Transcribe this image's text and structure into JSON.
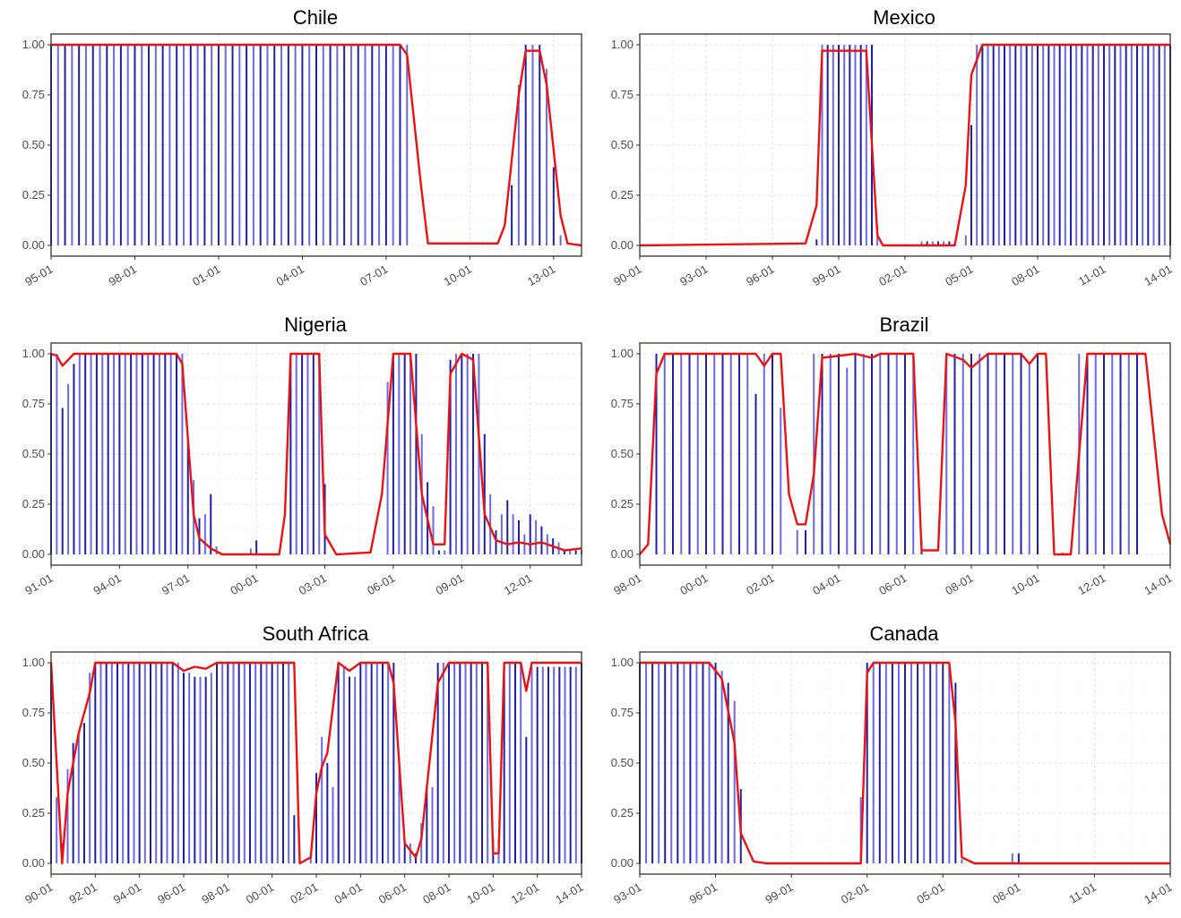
{
  "colors": {
    "bar_dark": "#1f1fa8",
    "bar_light": "#6a6ae8",
    "line": "#ee1111",
    "frame": "#333333",
    "grid": "#dcdcdc"
  },
  "chart_data": [
    {
      "type": "bar",
      "title": "Chile",
      "ylim": [
        0,
        1
      ],
      "yticks": [
        "0.00",
        "0.25",
        "0.50",
        "0.75",
        "1.00"
      ],
      "xlim": [
        "1995-01",
        "2014-01"
      ],
      "xticks": [
        "95-01",
        "98-01",
        "01-01",
        "04-01",
        "07-01",
        "10-01",
        "13-01"
      ],
      "bar_period_months": 3,
      "bars": [
        [
          "1995-01",
          1
        ],
        [
          "2007-10",
          1
        ],
        [
          "2008-01",
          0
        ],
        [
          "2011-01",
          0
        ],
        [
          "2011-07",
          0.3
        ],
        [
          "2011-10",
          0.8
        ],
        [
          "2012-01",
          1
        ],
        [
          "2012-07",
          1
        ],
        [
          "2012-10",
          0.88
        ],
        [
          "2013-01",
          0.39
        ],
        [
          "2013-04",
          0.05
        ],
        [
          "2013-07",
          0
        ]
      ],
      "line": [
        [
          "1995-01",
          1
        ],
        [
          "2007-07",
          1
        ],
        [
          "2007-10",
          0.95
        ],
        [
          "2008-04",
          0.3
        ],
        [
          "2008-07",
          0.01
        ],
        [
          "2011-01",
          0.01
        ],
        [
          "2011-04",
          0.1
        ],
        [
          "2011-10",
          0.75
        ],
        [
          "2012-01",
          0.97
        ],
        [
          "2012-07",
          0.97
        ],
        [
          "2012-10",
          0.8
        ],
        [
          "2013-04",
          0.15
        ],
        [
          "2013-07",
          0.01
        ],
        [
          "2014-01",
          0
        ]
      ]
    },
    {
      "type": "bar",
      "title": "Mexico",
      "ylim": [
        0,
        1
      ],
      "yticks": [
        "0.00",
        "0.25",
        "0.50",
        "0.75",
        "1.00"
      ],
      "xlim": [
        "1990-01",
        "2014-01"
      ],
      "xticks": [
        "90-01",
        "93-01",
        "96-01",
        "99-01",
        "02-01",
        "05-01",
        "08-01",
        "11-01",
        "14-01"
      ],
      "bar_period_months": 3,
      "bars": [
        [
          "1990-01",
          0
        ],
        [
          "1998-01",
          0.03
        ],
        [
          "1998-04",
          1
        ],
        [
          "2000-07",
          1
        ],
        [
          "2000-10",
          0.1
        ],
        [
          "2001-01",
          0
        ],
        [
          "2002-10",
          0.02
        ],
        [
          "2004-01",
          0.02
        ],
        [
          "2004-04",
          0
        ],
        [
          "2004-10",
          0.05
        ],
        [
          "2005-01",
          0.6
        ],
        [
          "2005-04",
          1
        ],
        [
          "2014-01",
          1
        ]
      ],
      "line": [
        [
          "1990-01",
          0
        ],
        [
          "1997-07",
          0.01
        ],
        [
          "1998-01",
          0.2
        ],
        [
          "1998-04",
          0.97
        ],
        [
          "2000-04",
          0.97
        ],
        [
          "2000-10",
          0.05
        ],
        [
          "2001-01",
          0
        ],
        [
          "2004-04",
          0
        ],
        [
          "2004-10",
          0.3
        ],
        [
          "2005-01",
          0.85
        ],
        [
          "2005-07",
          1
        ],
        [
          "2014-01",
          1
        ]
      ]
    },
    {
      "type": "bar",
      "title": "Nigeria",
      "ylim": [
        0,
        1
      ],
      "yticks": [
        "0.00",
        "0.25",
        "0.50",
        "0.75",
        "1.00"
      ],
      "xlim": [
        "1991-01",
        "2014-04"
      ],
      "xticks": [
        "91-01",
        "94-01",
        "97-01",
        "00-01",
        "03-01",
        "06-01",
        "09-01",
        "12-01"
      ],
      "bar_period_months": 3,
      "bars": [
        [
          "1991-01",
          1
        ],
        [
          "1991-07",
          0.73
        ],
        [
          "1991-10",
          0.85
        ],
        [
          "1992-01",
          0.95
        ],
        [
          "1992-04",
          1
        ],
        [
          "1996-10",
          1
        ],
        [
          "1997-01",
          0.58
        ],
        [
          "1997-04",
          0.37
        ],
        [
          "1997-07",
          0.18
        ],
        [
          "1997-10",
          0.2
        ],
        [
          "1998-01",
          0.3
        ],
        [
          "1998-04",
          0.04
        ],
        [
          "1998-07",
          0
        ],
        [
          "1999-10",
          0.03
        ],
        [
          "2000-01",
          0.07
        ],
        [
          "2000-04",
          0
        ],
        [
          "2001-07",
          1
        ],
        [
          "2002-10",
          1
        ],
        [
          "2003-01",
          0.35
        ],
        [
          "2003-04",
          0
        ],
        [
          "2005-10",
          0.86
        ],
        [
          "2006-01",
          1
        ],
        [
          "2007-01",
          1
        ],
        [
          "2007-04",
          0.6
        ],
        [
          "2007-07",
          0.36
        ],
        [
          "2007-10",
          0.24
        ],
        [
          "2008-01",
          0.02
        ],
        [
          "2008-07",
          0.97
        ],
        [
          "2008-10",
          1
        ],
        [
          "2009-10",
          1
        ],
        [
          "2010-01",
          0.6
        ],
        [
          "2010-04",
          0.3
        ],
        [
          "2010-07",
          0.12
        ],
        [
          "2010-10",
          0.2
        ],
        [
          "2011-01",
          0.27
        ],
        [
          "2011-04",
          0.2
        ],
        [
          "2011-07",
          0.17
        ],
        [
          "2011-10",
          0.1
        ],
        [
          "2012-01",
          0.2
        ],
        [
          "2012-04",
          0.17
        ],
        [
          "2012-07",
          0.14
        ],
        [
          "2012-10",
          0.1
        ],
        [
          "2013-01",
          0.08
        ],
        [
          "2013-04",
          0.06
        ],
        [
          "2013-07",
          0.02
        ],
        [
          "2014-01",
          0.02
        ]
      ],
      "line": [
        [
          "1991-01",
          1
        ],
        [
          "1991-04",
          0.99
        ],
        [
          "1991-07",
          0.94
        ],
        [
          "1992-01",
          1
        ],
        [
          "1996-07",
          1
        ],
        [
          "1996-10",
          0.95
        ],
        [
          "1997-04",
          0.2
        ],
        [
          "1997-07",
          0.08
        ],
        [
          "1998-01",
          0.03
        ],
        [
          "1998-07",
          0
        ],
        [
          "2001-01",
          0
        ],
        [
          "2001-04",
          0.2
        ],
        [
          "2001-07",
          1
        ],
        [
          "2002-10",
          1
        ],
        [
          "2003-01",
          0.1
        ],
        [
          "2003-07",
          0
        ],
        [
          "2005-01",
          0.01
        ],
        [
          "2005-07",
          0.3
        ],
        [
          "2006-01",
          1
        ],
        [
          "2006-10",
          1
        ],
        [
          "2007-04",
          0.3
        ],
        [
          "2007-10",
          0.05
        ],
        [
          "2008-04",
          0.05
        ],
        [
          "2008-07",
          0.9
        ],
        [
          "2009-01",
          1
        ],
        [
          "2009-07",
          0.97
        ],
        [
          "2010-01",
          0.2
        ],
        [
          "2010-07",
          0.07
        ],
        [
          "2011-01",
          0.05
        ],
        [
          "2011-07",
          0.06
        ],
        [
          "2012-01",
          0.05
        ],
        [
          "2012-07",
          0.06
        ],
        [
          "2013-01",
          0.04
        ],
        [
          "2013-07",
          0.02
        ],
        [
          "2014-04",
          0.03
        ]
      ]
    },
    {
      "type": "bar",
      "title": "Brazil",
      "ylim": [
        0,
        1
      ],
      "yticks": [
        "0.00",
        "0.25",
        "0.50",
        "0.75",
        "1.00"
      ],
      "xlim": [
        "1998-01",
        "2014-01"
      ],
      "xticks": [
        "98-01",
        "00-01",
        "02-01",
        "04-01",
        "06-01",
        "08-01",
        "10-01",
        "12-01",
        "14-01"
      ],
      "bar_period_months": 3,
      "bars": [
        [
          "1998-01",
          0
        ],
        [
          "1998-07",
          1
        ],
        [
          "2001-04",
          1
        ],
        [
          "2001-07",
          0.8
        ],
        [
          "2001-10",
          1
        ],
        [
          "2002-04",
          0.73
        ],
        [
          "2002-07",
          0
        ],
        [
          "2002-10",
          0.12
        ],
        [
          "2003-04",
          1
        ],
        [
          "2004-01",
          1
        ],
        [
          "2004-04",
          0.93
        ],
        [
          "2004-07",
          1
        ],
        [
          "2006-04",
          1
        ],
        [
          "2006-07",
          0.07
        ],
        [
          "2006-10",
          0
        ],
        [
          "2007-04",
          1
        ],
        [
          "2009-07",
          1
        ],
        [
          "2009-10",
          0.95
        ],
        [
          "2010-01",
          1
        ],
        [
          "2010-04",
          0
        ],
        [
          "2010-07",
          0.01
        ],
        [
          "2011-04",
          1
        ],
        [
          "2013-01",
          1
        ],
        [
          "2013-04",
          0
        ]
      ],
      "line": [
        [
          "1998-01",
          0
        ],
        [
          "1998-04",
          0.05
        ],
        [
          "1998-07",
          0.9
        ],
        [
          "1998-10",
          1
        ],
        [
          "2001-07",
          1
        ],
        [
          "2001-10",
          0.94
        ],
        [
          "2002-01",
          1
        ],
        [
          "2002-04",
          1
        ],
        [
          "2002-07",
          0.3
        ],
        [
          "2002-10",
          0.15
        ],
        [
          "2003-01",
          0.15
        ],
        [
          "2003-04",
          0.4
        ],
        [
          "2003-07",
          0.98
        ],
        [
          "2004-07",
          1
        ],
        [
          "2005-01",
          0.98
        ],
        [
          "2005-04",
          1
        ],
        [
          "2006-04",
          1
        ],
        [
          "2006-07",
          0.02
        ],
        [
          "2007-01",
          0.02
        ],
        [
          "2007-04",
          1
        ],
        [
          "2007-10",
          0.97
        ],
        [
          "2008-01",
          0.93
        ],
        [
          "2008-07",
          1
        ],
        [
          "2009-07",
          1
        ],
        [
          "2009-10",
          0.95
        ],
        [
          "2010-01",
          1
        ],
        [
          "2010-04",
          1
        ],
        [
          "2010-07",
          0
        ],
        [
          "2011-01",
          0
        ],
        [
          "2011-04",
          0.5
        ],
        [
          "2011-07",
          1
        ],
        [
          "2013-04",
          1
        ],
        [
          "2013-10",
          0.2
        ],
        [
          "2014-01",
          0.05
        ]
      ]
    },
    {
      "type": "bar",
      "title": "South Africa",
      "ylim": [
        0,
        1
      ],
      "yticks": [
        "0.00",
        "0.25",
        "0.50",
        "0.75",
        "1.00"
      ],
      "xlim": [
        "1990-01",
        "2014-01"
      ],
      "xticks": [
        "90-01",
        "92-01",
        "94-01",
        "96-01",
        "98-01",
        "00-01",
        "02-01",
        "04-01",
        "06-01",
        "08-01",
        "10-01",
        "12-01",
        "14-01"
      ],
      "bar_period_months": 3,
      "bars": [
        [
          "1990-01",
          1
        ],
        [
          "1990-04",
          0.33
        ],
        [
          "1990-07",
          0.1
        ],
        [
          "1990-10",
          0.47
        ],
        [
          "1991-01",
          0.6
        ],
        [
          "1991-04",
          0.65
        ],
        [
          "1991-07",
          0.7
        ],
        [
          "1991-10",
          0.95
        ],
        [
          "1992-01",
          1
        ],
        [
          "1995-10",
          1
        ],
        [
          "1996-01",
          0.95
        ],
        [
          "1996-07",
          0.93
        ],
        [
          "1997-04",
          0.95
        ],
        [
          "1997-07",
          1
        ],
        [
          "2000-10",
          1
        ],
        [
          "2001-01",
          0.24
        ],
        [
          "2001-04",
          0
        ],
        [
          "2001-10",
          0.05
        ],
        [
          "2002-01",
          0.45
        ],
        [
          "2002-04",
          0.63
        ],
        [
          "2002-07",
          0.5
        ],
        [
          "2002-10",
          0.38
        ],
        [
          "2003-01",
          1
        ],
        [
          "2003-04",
          0.98
        ],
        [
          "2003-07",
          0.93
        ],
        [
          "2004-01",
          1
        ],
        [
          "2005-07",
          1
        ],
        [
          "2005-10",
          0.53
        ],
        [
          "2006-01",
          0.1
        ],
        [
          "2006-07",
          0.05
        ],
        [
          "2006-10",
          0.2
        ],
        [
          "2007-01",
          0.38
        ],
        [
          "2007-07",
          1
        ],
        [
          "2009-10",
          1
        ],
        [
          "2010-01",
          0.12
        ],
        [
          "2010-07",
          1
        ],
        [
          "2011-04",
          1
        ],
        [
          "2011-07",
          0.63
        ],
        [
          "2011-10",
          0.98
        ],
        [
          "2014-01",
          1
        ]
      ],
      "line": [
        [
          "1990-01",
          1
        ],
        [
          "1990-04",
          0.5
        ],
        [
          "1990-07",
          0
        ],
        [
          "1990-10",
          0.35
        ],
        [
          "1991-04",
          0.65
        ],
        [
          "1991-10",
          0.85
        ],
        [
          "1992-01",
          1
        ],
        [
          "1995-07",
          1
        ],
        [
          "1996-01",
          0.96
        ],
        [
          "1996-07",
          0.98
        ],
        [
          "1997-01",
          0.97
        ],
        [
          "1997-07",
          1
        ],
        [
          "2001-01",
          1
        ],
        [
          "2001-04",
          0
        ],
        [
          "2001-10",
          0.03
        ],
        [
          "2002-01",
          0.35
        ],
        [
          "2002-04",
          0.48
        ],
        [
          "2002-07",
          0.55
        ],
        [
          "2003-01",
          1
        ],
        [
          "2003-04",
          0.98
        ],
        [
          "2003-07",
          0.96
        ],
        [
          "2004-01",
          1
        ],
        [
          "2005-04",
          1
        ],
        [
          "2005-07",
          0.9
        ],
        [
          "2006-01",
          0.1
        ],
        [
          "2006-07",
          0.03
        ],
        [
          "2006-10",
          0.12
        ],
        [
          "2007-07",
          0.9
        ],
        [
          "2008-01",
          1
        ],
        [
          "2009-10",
          1
        ],
        [
          "2010-01",
          0.05
        ],
        [
          "2010-04",
          0.05
        ],
        [
          "2010-07",
          1
        ],
        [
          "2011-04",
          1
        ],
        [
          "2011-07",
          0.86
        ],
        [
          "2011-10",
          1
        ],
        [
          "2014-01",
          1
        ]
      ]
    },
    {
      "type": "bar",
      "title": "Canada",
      "ylim": [
        0,
        1
      ],
      "yticks": [
        "0.00",
        "0.25",
        "0.50",
        "0.75",
        "1.00"
      ],
      "xlim": [
        "1993-01",
        "2014-01"
      ],
      "xticks": [
        "93-01",
        "96-01",
        "99-01",
        "02-01",
        "05-01",
        "08-01",
        "11-01",
        "14-01"
      ],
      "bar_period_months": 3,
      "bars": [
        [
          "1993-01",
          1
        ],
        [
          "1996-01",
          1
        ],
        [
          "1996-04",
          0.96
        ],
        [
          "1996-07",
          0.9
        ],
        [
          "1996-10",
          0.81
        ],
        [
          "1997-01",
          0.37
        ],
        [
          "1997-04",
          0
        ],
        [
          "2001-10",
          0.33
        ],
        [
          "2002-01",
          1
        ],
        [
          "2005-04",
          1
        ],
        [
          "2005-07",
          0.9
        ],
        [
          "2005-10",
          0.02
        ],
        [
          "2006-01",
          0
        ],
        [
          "2007-10",
          0.05
        ],
        [
          "2008-01",
          0.05
        ],
        [
          "2008-04",
          0
        ]
      ],
      "line": [
        [
          "1993-01",
          1
        ],
        [
          "1995-10",
          1
        ],
        [
          "1996-04",
          0.92
        ],
        [
          "1996-10",
          0.6
        ],
        [
          "1997-01",
          0.15
        ],
        [
          "1997-07",
          0.01
        ],
        [
          "1998-01",
          0
        ],
        [
          "2001-10",
          0
        ],
        [
          "2002-01",
          0.95
        ],
        [
          "2002-04",
          1
        ],
        [
          "2005-04",
          1
        ],
        [
          "2005-07",
          0.7
        ],
        [
          "2005-10",
          0.03
        ],
        [
          "2006-04",
          0
        ],
        [
          "2014-01",
          0
        ]
      ]
    }
  ]
}
